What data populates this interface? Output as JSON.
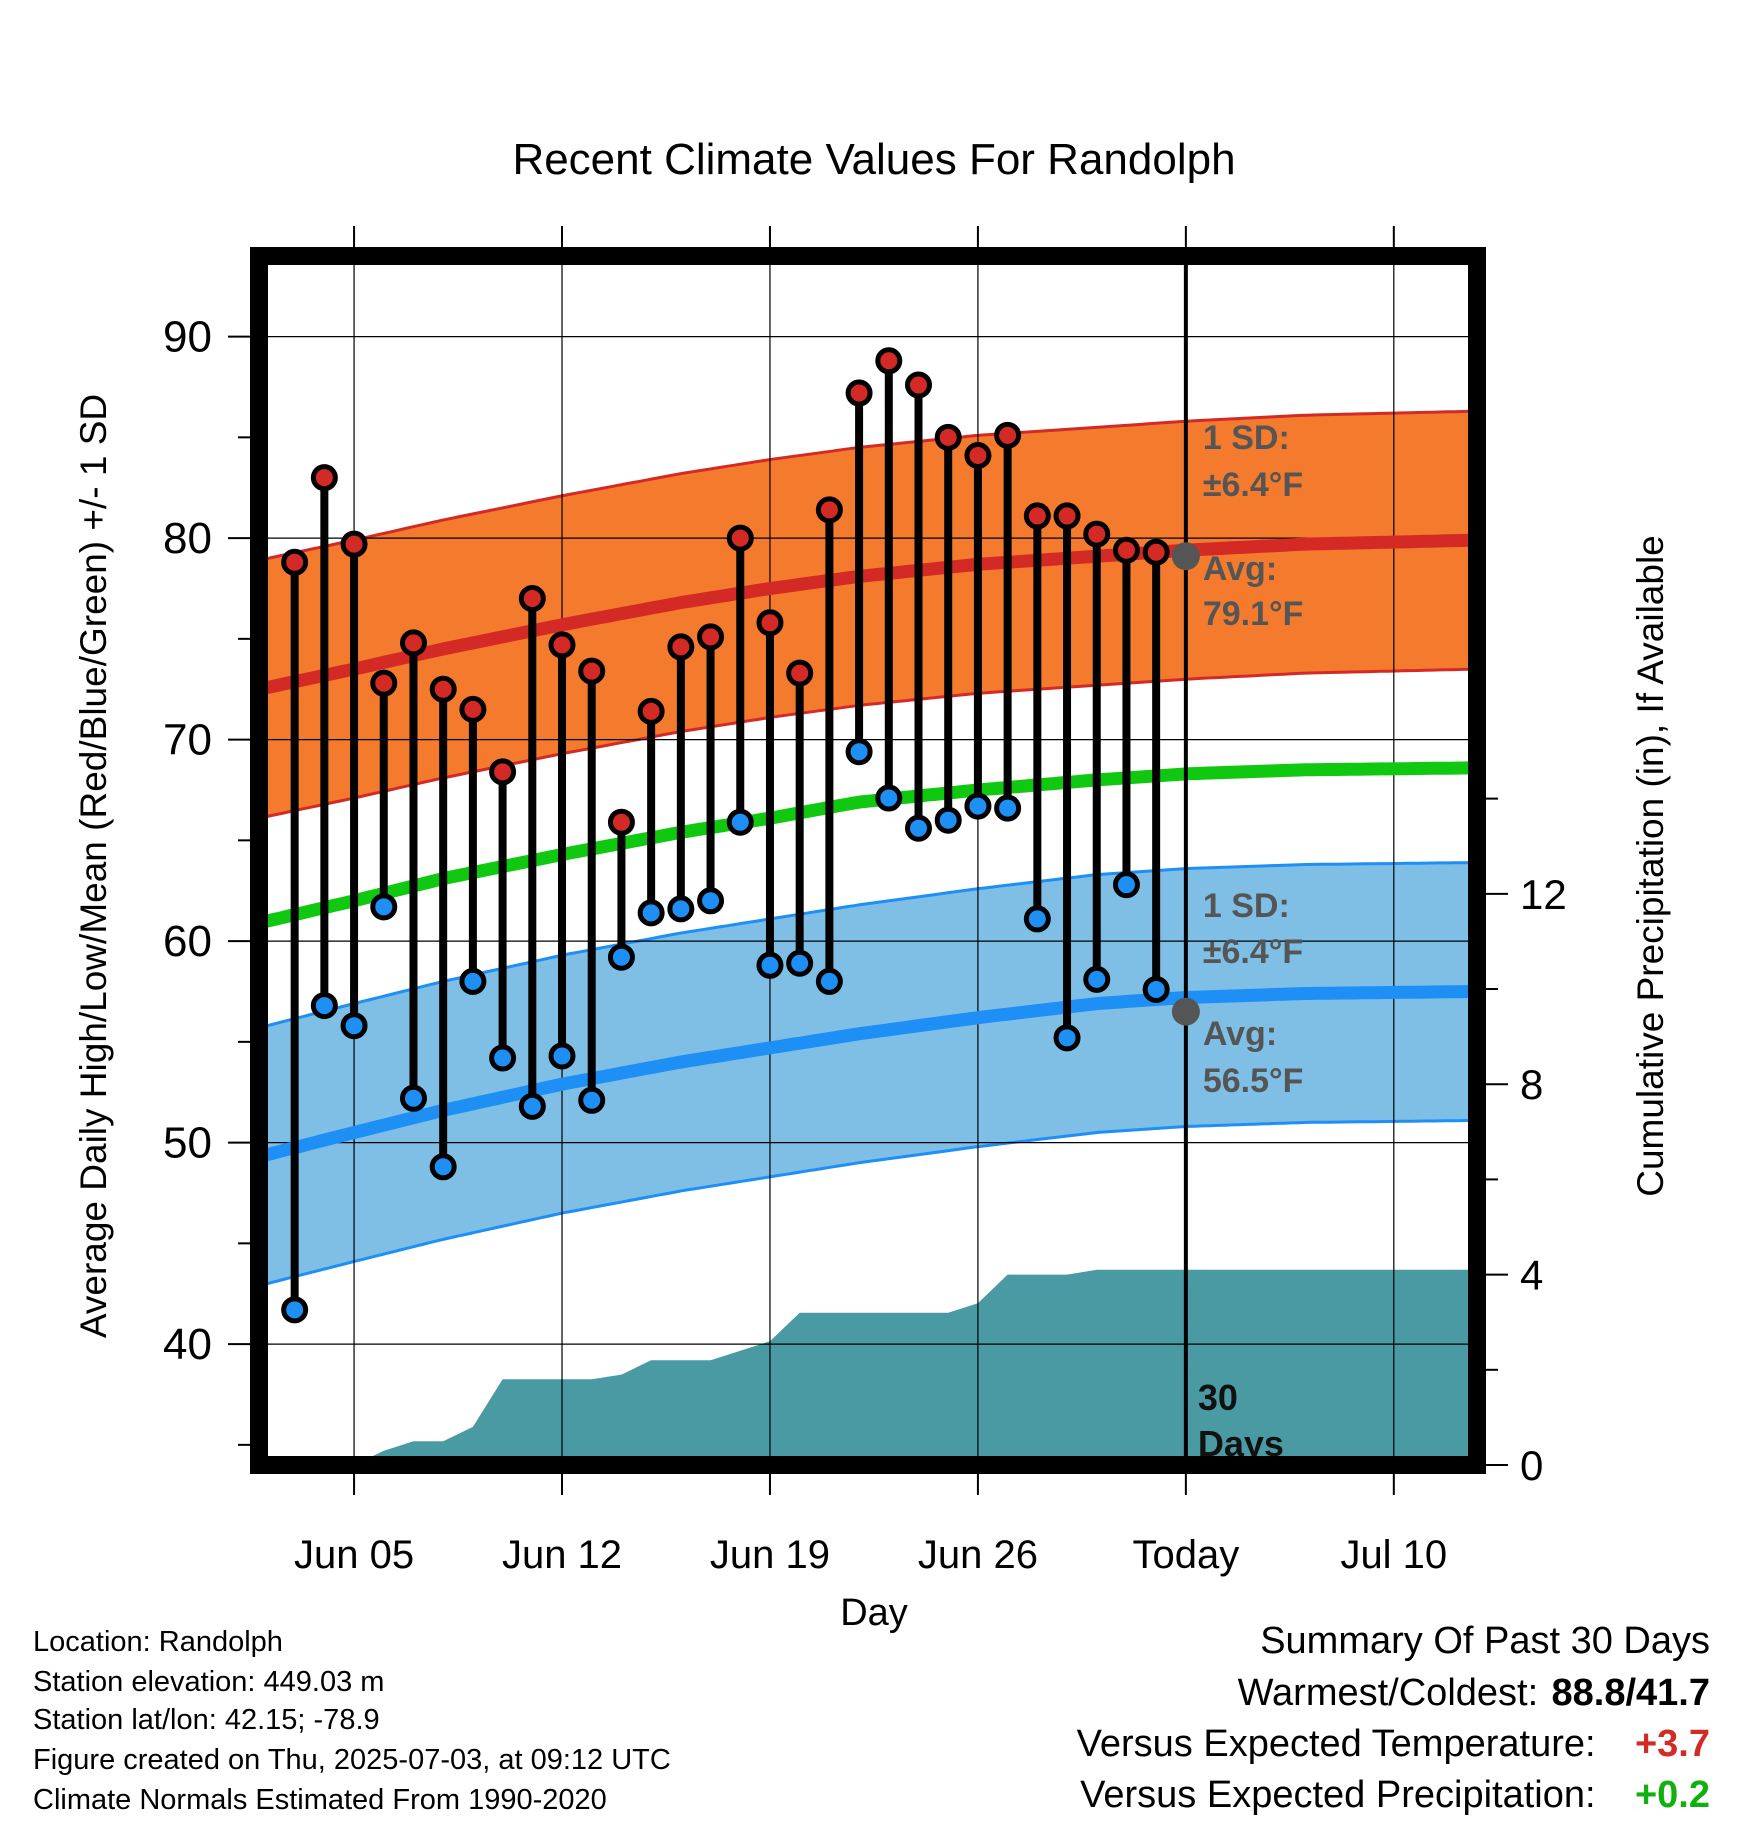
{
  "chart_data": {
    "type": "line",
    "title": "Recent Climate Values For Randolph",
    "xlabel": "Day",
    "ylabel_left": "Average Daily High/Low/Mean (Red/Blue/Green) +/- 1 SD",
    "ylabel_right": "Cumulative Precipitation (in), If Available",
    "x_tick_labels": [
      {
        "day": 5,
        "label": "Jun 05"
      },
      {
        "day": 12,
        "label": "Jun 12"
      },
      {
        "day": 19,
        "label": "Jun 19"
      },
      {
        "day": 26,
        "label": "Jun 26"
      },
      {
        "day": 33,
        "label": "Today"
      },
      {
        "day": 40,
        "label": "Jul 10"
      }
    ],
    "xlim": [
      1.8,
      42.8
    ],
    "ylim_left": [
      34,
      94
    ],
    "y_ticks_left": [
      40,
      50,
      60,
      70,
      80,
      90
    ],
    "ylim_right": [
      0,
      25.4
    ],
    "y_ticks_right": [
      0,
      4,
      8,
      12
    ],
    "today_day": 33,
    "days_label": [
      "30",
      "Days"
    ],
    "daily": [
      {
        "day": 3,
        "high": 78.8,
        "low": 41.7
      },
      {
        "day": 4,
        "high": 83.0,
        "low": 56.8
      },
      {
        "day": 5,
        "high": 79.7,
        "low": 55.8
      },
      {
        "day": 6,
        "high": 72.8,
        "low": 61.7
      },
      {
        "day": 7,
        "high": 74.8,
        "low": 52.2
      },
      {
        "day": 8,
        "high": 72.5,
        "low": 48.8
      },
      {
        "day": 9,
        "high": 71.5,
        "low": 58.0
      },
      {
        "day": 10,
        "high": 68.4,
        "low": 54.2
      },
      {
        "day": 11,
        "high": 77.0,
        "low": 51.8
      },
      {
        "day": 12,
        "high": 74.7,
        "low": 54.3
      },
      {
        "day": 13,
        "high": 73.4,
        "low": 52.1
      },
      {
        "day": 14,
        "high": 65.9,
        "low": 59.2
      },
      {
        "day": 15,
        "high": 71.4,
        "low": 61.4
      },
      {
        "day": 16,
        "high": 74.6,
        "low": 61.6
      },
      {
        "day": 17,
        "high": 75.1,
        "low": 62.0
      },
      {
        "day": 18,
        "high": 80.0,
        "low": 65.9
      },
      {
        "day": 19,
        "high": 75.8,
        "low": 58.8
      },
      {
        "day": 20,
        "high": 73.3,
        "low": 58.9
      },
      {
        "day": 21,
        "high": 81.4,
        "low": 58.0
      },
      {
        "day": 22,
        "high": 87.2,
        "low": 69.4
      },
      {
        "day": 23,
        "high": 88.8,
        "low": 67.1
      },
      {
        "day": 24,
        "high": 87.6,
        "low": 65.6
      },
      {
        "day": 25,
        "high": 85.0,
        "low": 66.0
      },
      {
        "day": 26,
        "high": 84.1,
        "low": 66.7
      },
      {
        "day": 27,
        "high": 85.1,
        "low": 66.6
      },
      {
        "day": 28,
        "high": 81.1,
        "low": 61.1
      },
      {
        "day": 29,
        "high": 81.1,
        "low": 55.2
      },
      {
        "day": 30,
        "high": 80.2,
        "low": 58.1
      },
      {
        "day": 31,
        "high": 79.4,
        "low": 62.8
      },
      {
        "day": 32,
        "high": 79.3,
        "low": 57.6
      }
    ],
    "normals": {
      "days": [
        1.8,
        5,
        8,
        12,
        16,
        19,
        22,
        26,
        30,
        33,
        37,
        42.8
      ],
      "high_avg": [
        72.5,
        73.5,
        74.5,
        75.7,
        76.8,
        77.5,
        78.1,
        78.7,
        79.1,
        79.4,
        79.7,
        79.9
      ],
      "mean_avg": [
        60.9,
        62.0,
        63.1,
        64.3,
        65.4,
        66.1,
        66.9,
        67.5,
        68.0,
        68.3,
        68.5,
        68.6
      ],
      "low_avg": [
        49.3,
        50.5,
        51.6,
        52.9,
        54.0,
        54.7,
        55.4,
        56.2,
        56.9,
        57.2,
        57.4,
        57.5
      ]
    },
    "sd": 6.4,
    "annotations": {
      "high": {
        "sd_label": "1 SD:",
        "sd_value": "±6.4°F",
        "avg_label": "Avg:",
        "avg_value": "79.1°F",
        "today_value": 79.1
      },
      "low": {
        "sd_label": "1 SD:",
        "sd_value": "±6.4°F",
        "avg_label": "Avg:",
        "avg_value": "56.5°F",
        "today_value": 56.5
      }
    },
    "precip": {
      "days": [
        1.8,
        5,
        6,
        7,
        8,
        9,
        10,
        11,
        12,
        13,
        14,
        15,
        16,
        17,
        18,
        19,
        20,
        21,
        22,
        23,
        24,
        25,
        26,
        27,
        28,
        29,
        30,
        33,
        42.8
      ],
      "values": [
        0,
        0,
        0.3,
        0.5,
        0.5,
        0.8,
        1.8,
        1.8,
        1.8,
        1.8,
        1.9,
        2.2,
        2.2,
        2.2,
        2.4,
        2.6,
        3.2,
        3.2,
        3.2,
        3.2,
        3.2,
        3.2,
        3.4,
        4.0,
        4.0,
        4.0,
        4.1,
        4.1,
        4.1
      ]
    },
    "colors": {
      "high_band": "#f47b2e",
      "high_line": "#d42a25",
      "high_marker": "#d42a25",
      "low_band": "#7fbfe6",
      "low_line": "#1e8ff5",
      "low_marker": "#1e8ff5",
      "mean_line": "#10c810",
      "precip_fill": "#4a9aa3",
      "annotation_text": "#555555"
    }
  },
  "info": {
    "location": "Location: Randolph",
    "elevation": "Station elevation: 449.03 m",
    "latlon": "Station lat/lon: 42.15; -78.9",
    "created": "Figure created on Thu, 2025-07-03, at 09:12 UTC",
    "normals": "Climate Normals Estimated From 1990-2020"
  },
  "summary": {
    "heading": "Summary Of Past 30 Days",
    "warm_cold_label": "Warmest/Coldest:",
    "warmest": "88.8",
    "coldest": "41.7",
    "temp_label": "Versus Expected Temperature:",
    "temp_value": "+3.7",
    "temp_color": "#d42a25",
    "precip_label": "Versus Expected Precipitation:",
    "precip_value": "+0.2",
    "precip_color": "#10b010"
  }
}
